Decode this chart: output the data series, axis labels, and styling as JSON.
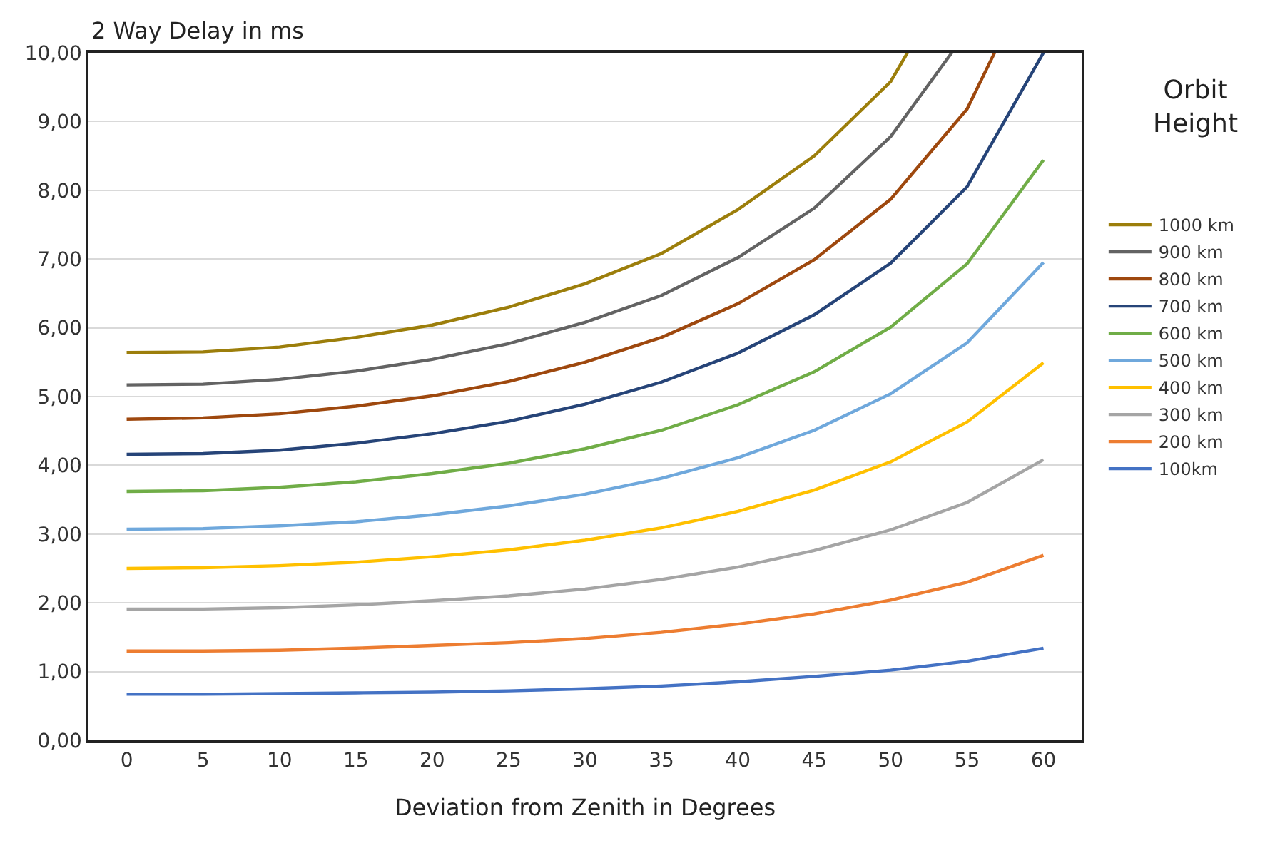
{
  "chart_data": {
    "type": "line",
    "ylabel": "2 Way Delay in ms",
    "xlabel": "Deviation from Zenith in Degrees",
    "legend_title": "Orbit Height",
    "x": [
      0,
      5,
      10,
      15,
      20,
      25,
      30,
      35,
      40,
      45,
      50,
      55,
      60
    ],
    "series": [
      {
        "name": "1000 km",
        "color": "#9c7e0b",
        "x": [
          0,
          5,
          10,
          15,
          20,
          25,
          30,
          35,
          40,
          45,
          50,
          51.1
        ],
        "values": [
          5.64,
          5.65,
          5.72,
          5.86,
          6.04,
          6.3,
          6.64,
          7.08,
          7.72,
          8.5,
          9.58,
          10.0
        ]
      },
      {
        "name": "900 km",
        "color": "#636363",
        "x": [
          0,
          5,
          10,
          15,
          20,
          25,
          30,
          35,
          40,
          45,
          50,
          54.0
        ],
        "values": [
          5.17,
          5.18,
          5.25,
          5.37,
          5.54,
          5.77,
          6.08,
          6.47,
          7.02,
          7.74,
          8.78,
          10.0
        ]
      },
      {
        "name": "800 km",
        "color": "#9e480e",
        "x": [
          0,
          5,
          10,
          15,
          20,
          25,
          30,
          35,
          40,
          45,
          50,
          55,
          56.8
        ],
        "values": [
          4.67,
          4.69,
          4.75,
          4.86,
          5.01,
          5.22,
          5.5,
          5.86,
          6.35,
          6.99,
          7.87,
          9.18,
          10.0
        ]
      },
      {
        "name": "700 km",
        "color": "#264478",
        "values": [
          4.16,
          4.17,
          4.22,
          4.32,
          4.46,
          4.64,
          4.89,
          5.21,
          5.63,
          6.19,
          6.94,
          8.05,
          10.0
        ]
      },
      {
        "name": "600 km",
        "color": "#70ad47",
        "values": [
          3.62,
          3.63,
          3.68,
          3.76,
          3.88,
          4.03,
          4.24,
          4.51,
          4.88,
          5.36,
          6.01,
          6.93,
          8.44
        ]
      },
      {
        "name": "500 km",
        "color": "#6fa8dc",
        "values": [
          3.07,
          3.08,
          3.12,
          3.18,
          3.28,
          3.41,
          3.58,
          3.81,
          4.11,
          4.51,
          5.04,
          5.78,
          6.95
        ]
      },
      {
        "name": "400 km",
        "color": "#ffc000",
        "values": [
          2.5,
          2.51,
          2.54,
          2.59,
          2.67,
          2.77,
          2.91,
          3.09,
          3.33,
          3.64,
          4.05,
          4.63,
          5.49
        ]
      },
      {
        "name": "300 km",
        "color": "#a5a5a5",
        "values": [
          1.91,
          1.91,
          1.93,
          1.97,
          2.03,
          2.1,
          2.2,
          2.34,
          2.52,
          2.76,
          3.06,
          3.46,
          4.08
        ]
      },
      {
        "name": "200 km",
        "color": "#ed7d31",
        "values": [
          1.3,
          1.3,
          1.31,
          1.34,
          1.38,
          1.42,
          1.48,
          1.57,
          1.69,
          1.84,
          2.04,
          2.3,
          2.69
        ]
      },
      {
        "name": "100km",
        "color": "#4472c4",
        "values": [
          0.67,
          0.67,
          0.68,
          0.69,
          0.7,
          0.72,
          0.75,
          0.79,
          0.85,
          0.93,
          1.02,
          1.15,
          1.34
        ]
      }
    ],
    "xlim": [
      -2.5,
      62.5
    ],
    "xticks": [
      0,
      5,
      10,
      15,
      20,
      25,
      30,
      35,
      40,
      45,
      50,
      55,
      60
    ],
    "ylim": [
      0,
      10
    ],
    "yticks": [
      {
        "value": 0,
        "label": "0,00"
      },
      {
        "value": 1,
        "label": "1,00"
      },
      {
        "value": 2,
        "label": "2,00"
      },
      {
        "value": 3,
        "label": "3,00"
      },
      {
        "value": 4,
        "label": "4,00"
      },
      {
        "value": 5,
        "label": "5,00"
      },
      {
        "value": 6,
        "label": "6,00"
      },
      {
        "value": 7,
        "label": "7,00"
      },
      {
        "value": 8,
        "label": "8,00"
      },
      {
        "value": 9,
        "label": "9,00"
      },
      {
        "value": 10,
        "label": "10,00"
      }
    ],
    "grid": "y",
    "legend": "right",
    "marker": "none",
    "line_style": "solid"
  }
}
